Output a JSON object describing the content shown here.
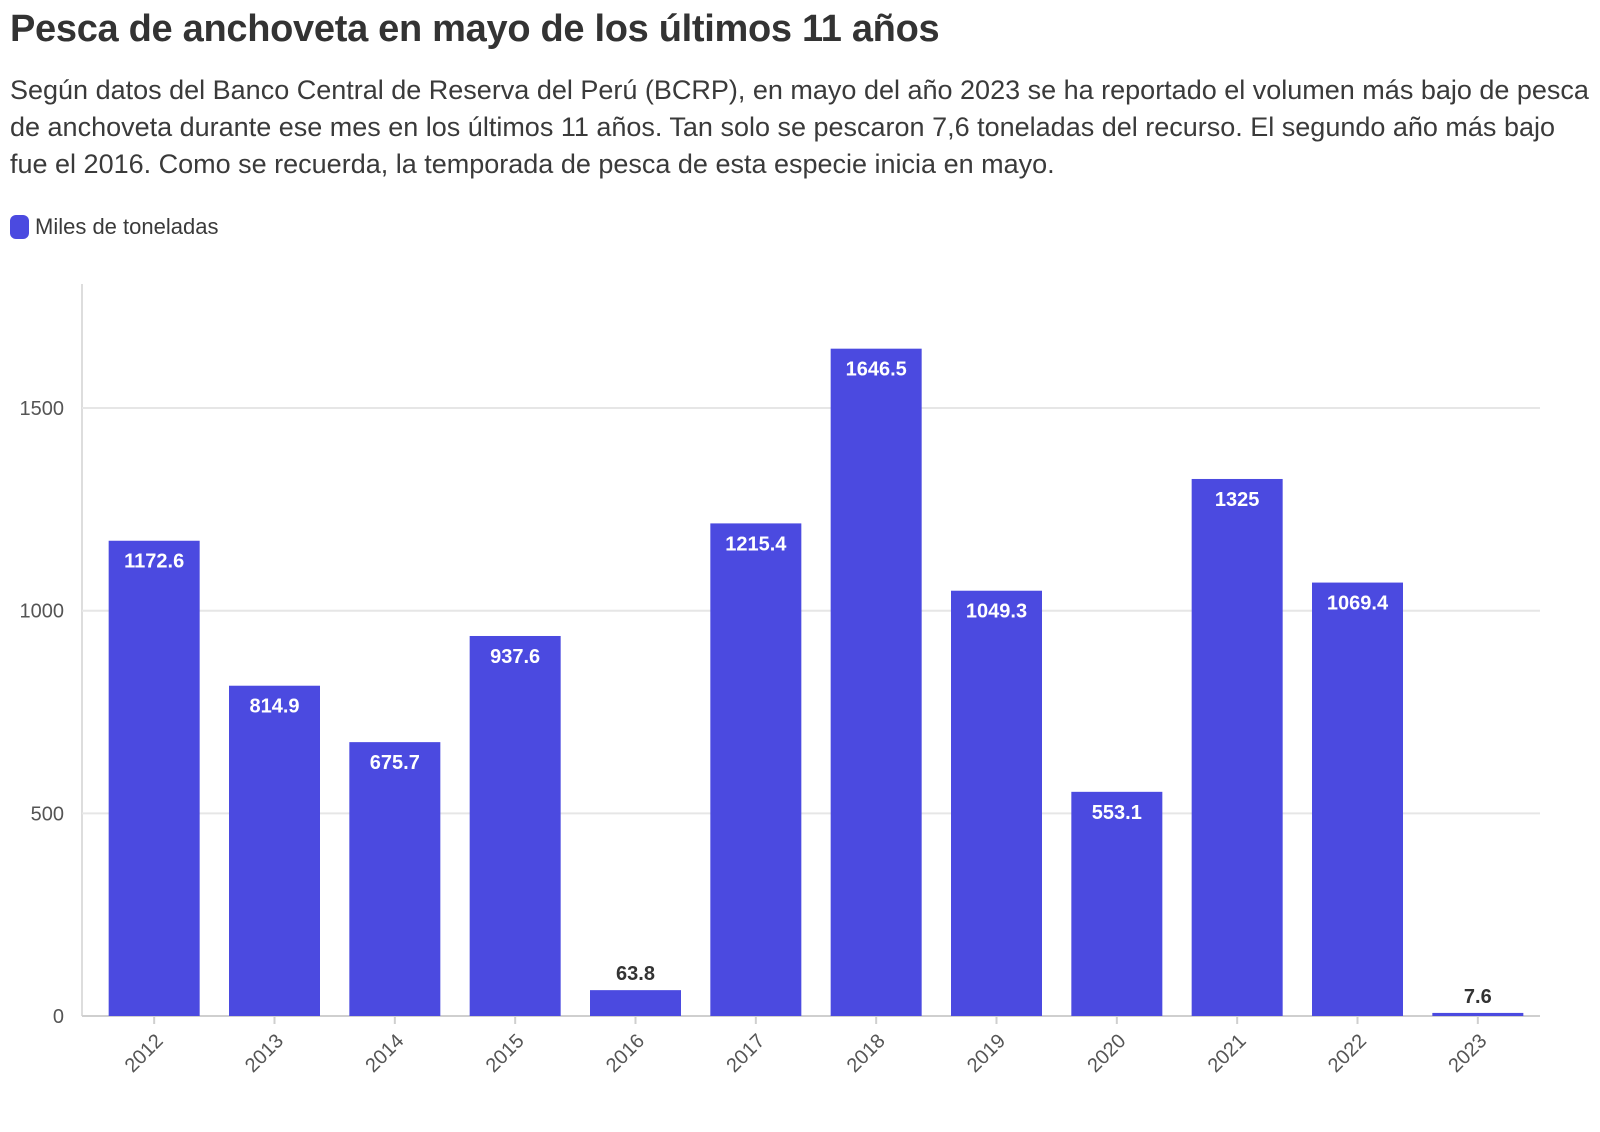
{
  "title": "Pesca de anchoveta en mayo de los últimos 11 años",
  "subtitle": "Según datos del Banco Central de Reserva del Perú (BCRP), en mayo del año 2023 se ha reportado el volumen más bajo de pesca de anchoveta durante ese mes en los últimos 11 años. Tan solo se pescaron 7,6 toneladas del recurso. El segundo año más bajo fue el 2016. Como se recuerda, la temporada de pesca de esta especie inicia en mayo.",
  "legend": {
    "label": "Miles de toneladas",
    "color": "#4b4ae0"
  },
  "chart_data": {
    "type": "bar",
    "title": "Pesca de anchoveta en mayo de los últimos 11 años",
    "xlabel": "",
    "ylabel": "",
    "categories": [
      "2012",
      "2013",
      "2014",
      "2015",
      "2016",
      "2017",
      "2018",
      "2019",
      "2020",
      "2021",
      "2022",
      "2023"
    ],
    "series": [
      {
        "name": "Miles de toneladas",
        "color": "#4b4ae0",
        "values": [
          1172.6,
          814.9,
          675.7,
          937.6,
          63.8,
          1215.4,
          1646.5,
          1049.3,
          553.1,
          1325,
          1069.4,
          7.6
        ],
        "labels": [
          "1172.6",
          "814.9",
          "675.7",
          "937.6",
          "63.8",
          "1215.4",
          "1646.5",
          "1049.3",
          "553.1",
          "1325",
          "1069.4",
          "7.6"
        ]
      }
    ],
    "yticks": [
      0,
      500,
      1000,
      1500
    ],
    "ytick_labels": [
      "0",
      "500",
      "1000",
      "1500"
    ],
    "ylim": [
      0,
      1800
    ],
    "grid": true,
    "legend_position": "top-left"
  }
}
